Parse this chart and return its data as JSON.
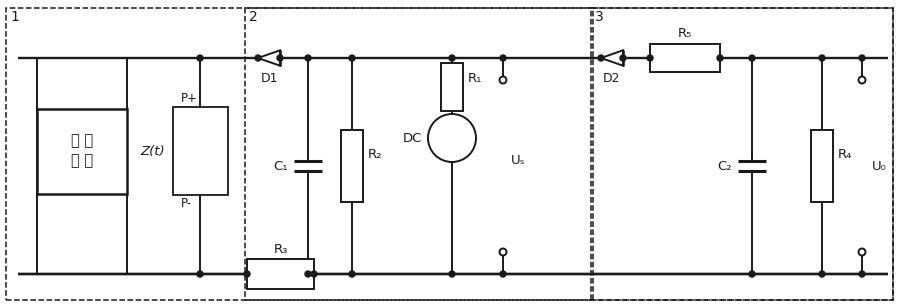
{
  "fig_width": 9.01,
  "fig_height": 3.06,
  "dpi": 100,
  "bg_color": "#ffffff",
  "line_color": "#1a1a1a",
  "lw": 1.4,
  "box1_label": "1",
  "box2_label": "2",
  "box3_label": "3",
  "pulse_line1": "脉 冲",
  "pulse_line2": "电 源",
  "zt_label": "Z(t)",
  "pplus": "P+",
  "pminus": "P-",
  "d1": "D1",
  "d2": "D2",
  "r1": "R₁",
  "r2": "R₂",
  "r3": "R₃",
  "r4": "R₄",
  "r5": "R₅",
  "c1": "C₁",
  "c2": "C₂",
  "dc": "DC",
  "us": "Uₛ",
  "ua": "U₀"
}
